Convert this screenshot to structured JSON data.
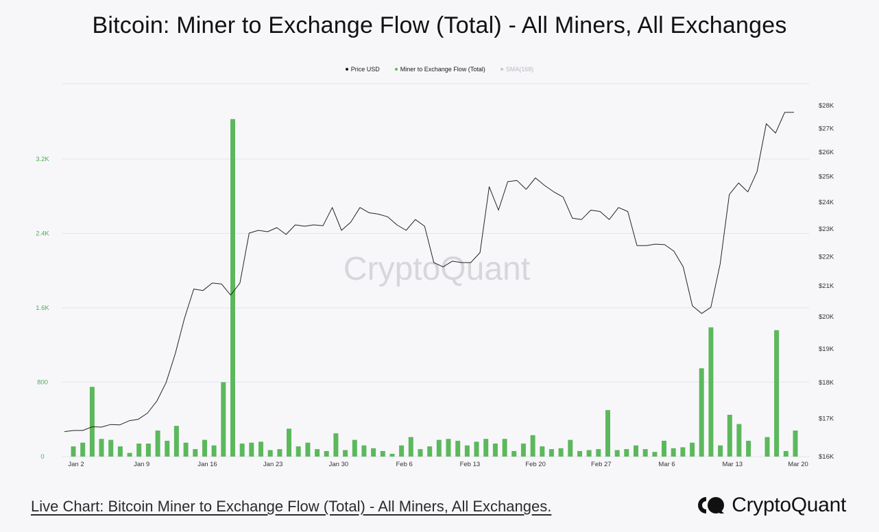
{
  "page": {
    "title": "Bitcoin: Miner to Exchange Flow (Total) - All Miners, All Exchanges",
    "footer_link": "Live Chart: Bitcoin Miner to Exchange Flow (Total) - All Miners, All Exchanges.",
    "brand": "CryptoQuant",
    "watermark": "CryptoQuant"
  },
  "legend": [
    {
      "label": "Price USD",
      "color": "#111111"
    },
    {
      "label": "Miner to Exchange Flow (Total)",
      "color": "#5cb85c"
    },
    {
      "label": "SMA(168)",
      "color": "#c4c4cc"
    }
  ],
  "chart_data": {
    "type": "bar+line",
    "x_tick_labels": [
      "Jan 2",
      "Jan 9",
      "Jan 16",
      "Jan 23",
      "Jan 30",
      "Feb 6",
      "Feb 13",
      "Feb 20",
      "Feb 27",
      "Mar 6",
      "Mar 13",
      "Mar 20"
    ],
    "left_axis": {
      "ticks": [
        0,
        800,
        1600,
        2400,
        3200
      ],
      "tick_labels": [
        "0",
        "800",
        "1.6K",
        "2.4K",
        "3.2K"
      ],
      "ylim": [
        0,
        3960
      ],
      "color": "#4caf50"
    },
    "right_axis": {
      "ticks": [
        16000,
        17000,
        18000,
        19000,
        20000,
        21000,
        22000,
        23000,
        24000,
        25000,
        26000,
        27000,
        28000
      ],
      "tick_labels": [
        "$16K",
        "$17K",
        "$18K",
        "$19K",
        "$20K",
        "$21K",
        "$22K",
        "$23K",
        "$24K",
        "$25K",
        "$26K",
        "$27K",
        "$28K"
      ],
      "scale": "log"
    },
    "grid": true,
    "series": [
      {
        "name": "Miner to Exchange Flow (Total)",
        "type": "bar",
        "color": "#5cb85c",
        "values": [
          110,
          150,
          750,
          190,
          180,
          110,
          40,
          140,
          140,
          280,
          170,
          330,
          150,
          80,
          180,
          120,
          800,
          3630,
          140,
          150,
          160,
          70,
          80,
          300,
          110,
          150,
          80,
          60,
          250,
          70,
          180,
          120,
          90,
          60,
          30,
          120,
          210,
          80,
          110,
          180,
          190,
          170,
          120,
          160,
          190,
          140,
          190,
          60,
          140,
          230,
          110,
          80,
          90,
          180,
          60,
          70,
          80,
          500,
          70,
          80,
          120,
          80,
          50,
          170,
          90,
          100,
          150,
          950,
          1390,
          120,
          450,
          350,
          170,
          0,
          210,
          1360,
          60,
          280
        ]
      },
      {
        "name": "Price USD",
        "type": "line",
        "color": "#222222",
        "values": [
          16650,
          16680,
          16680,
          16780,
          16770,
          16840,
          16830,
          16940,
          16980,
          17150,
          17480,
          18000,
          18850,
          19950,
          20900,
          20850,
          21100,
          21070,
          20700,
          21100,
          22850,
          22950,
          22900,
          23050,
          22800,
          23150,
          23100,
          23150,
          23120,
          23800,
          22950,
          23250,
          23800,
          23600,
          23550,
          23450,
          23150,
          22950,
          23350,
          23100,
          21800,
          21650,
          21850,
          21800,
          21800,
          22150,
          24600,
          23700,
          24800,
          24850,
          24500,
          24950,
          24650,
          24400,
          24200,
          23400,
          23350,
          23700,
          23650,
          23350,
          23800,
          23650,
          22400,
          22400,
          22450,
          22430,
          22200,
          21650,
          20350,
          20100,
          20300,
          21750,
          24300,
          24750,
          24400,
          25200,
          27200,
          26800,
          27700,
          27700
        ]
      }
    ]
  }
}
